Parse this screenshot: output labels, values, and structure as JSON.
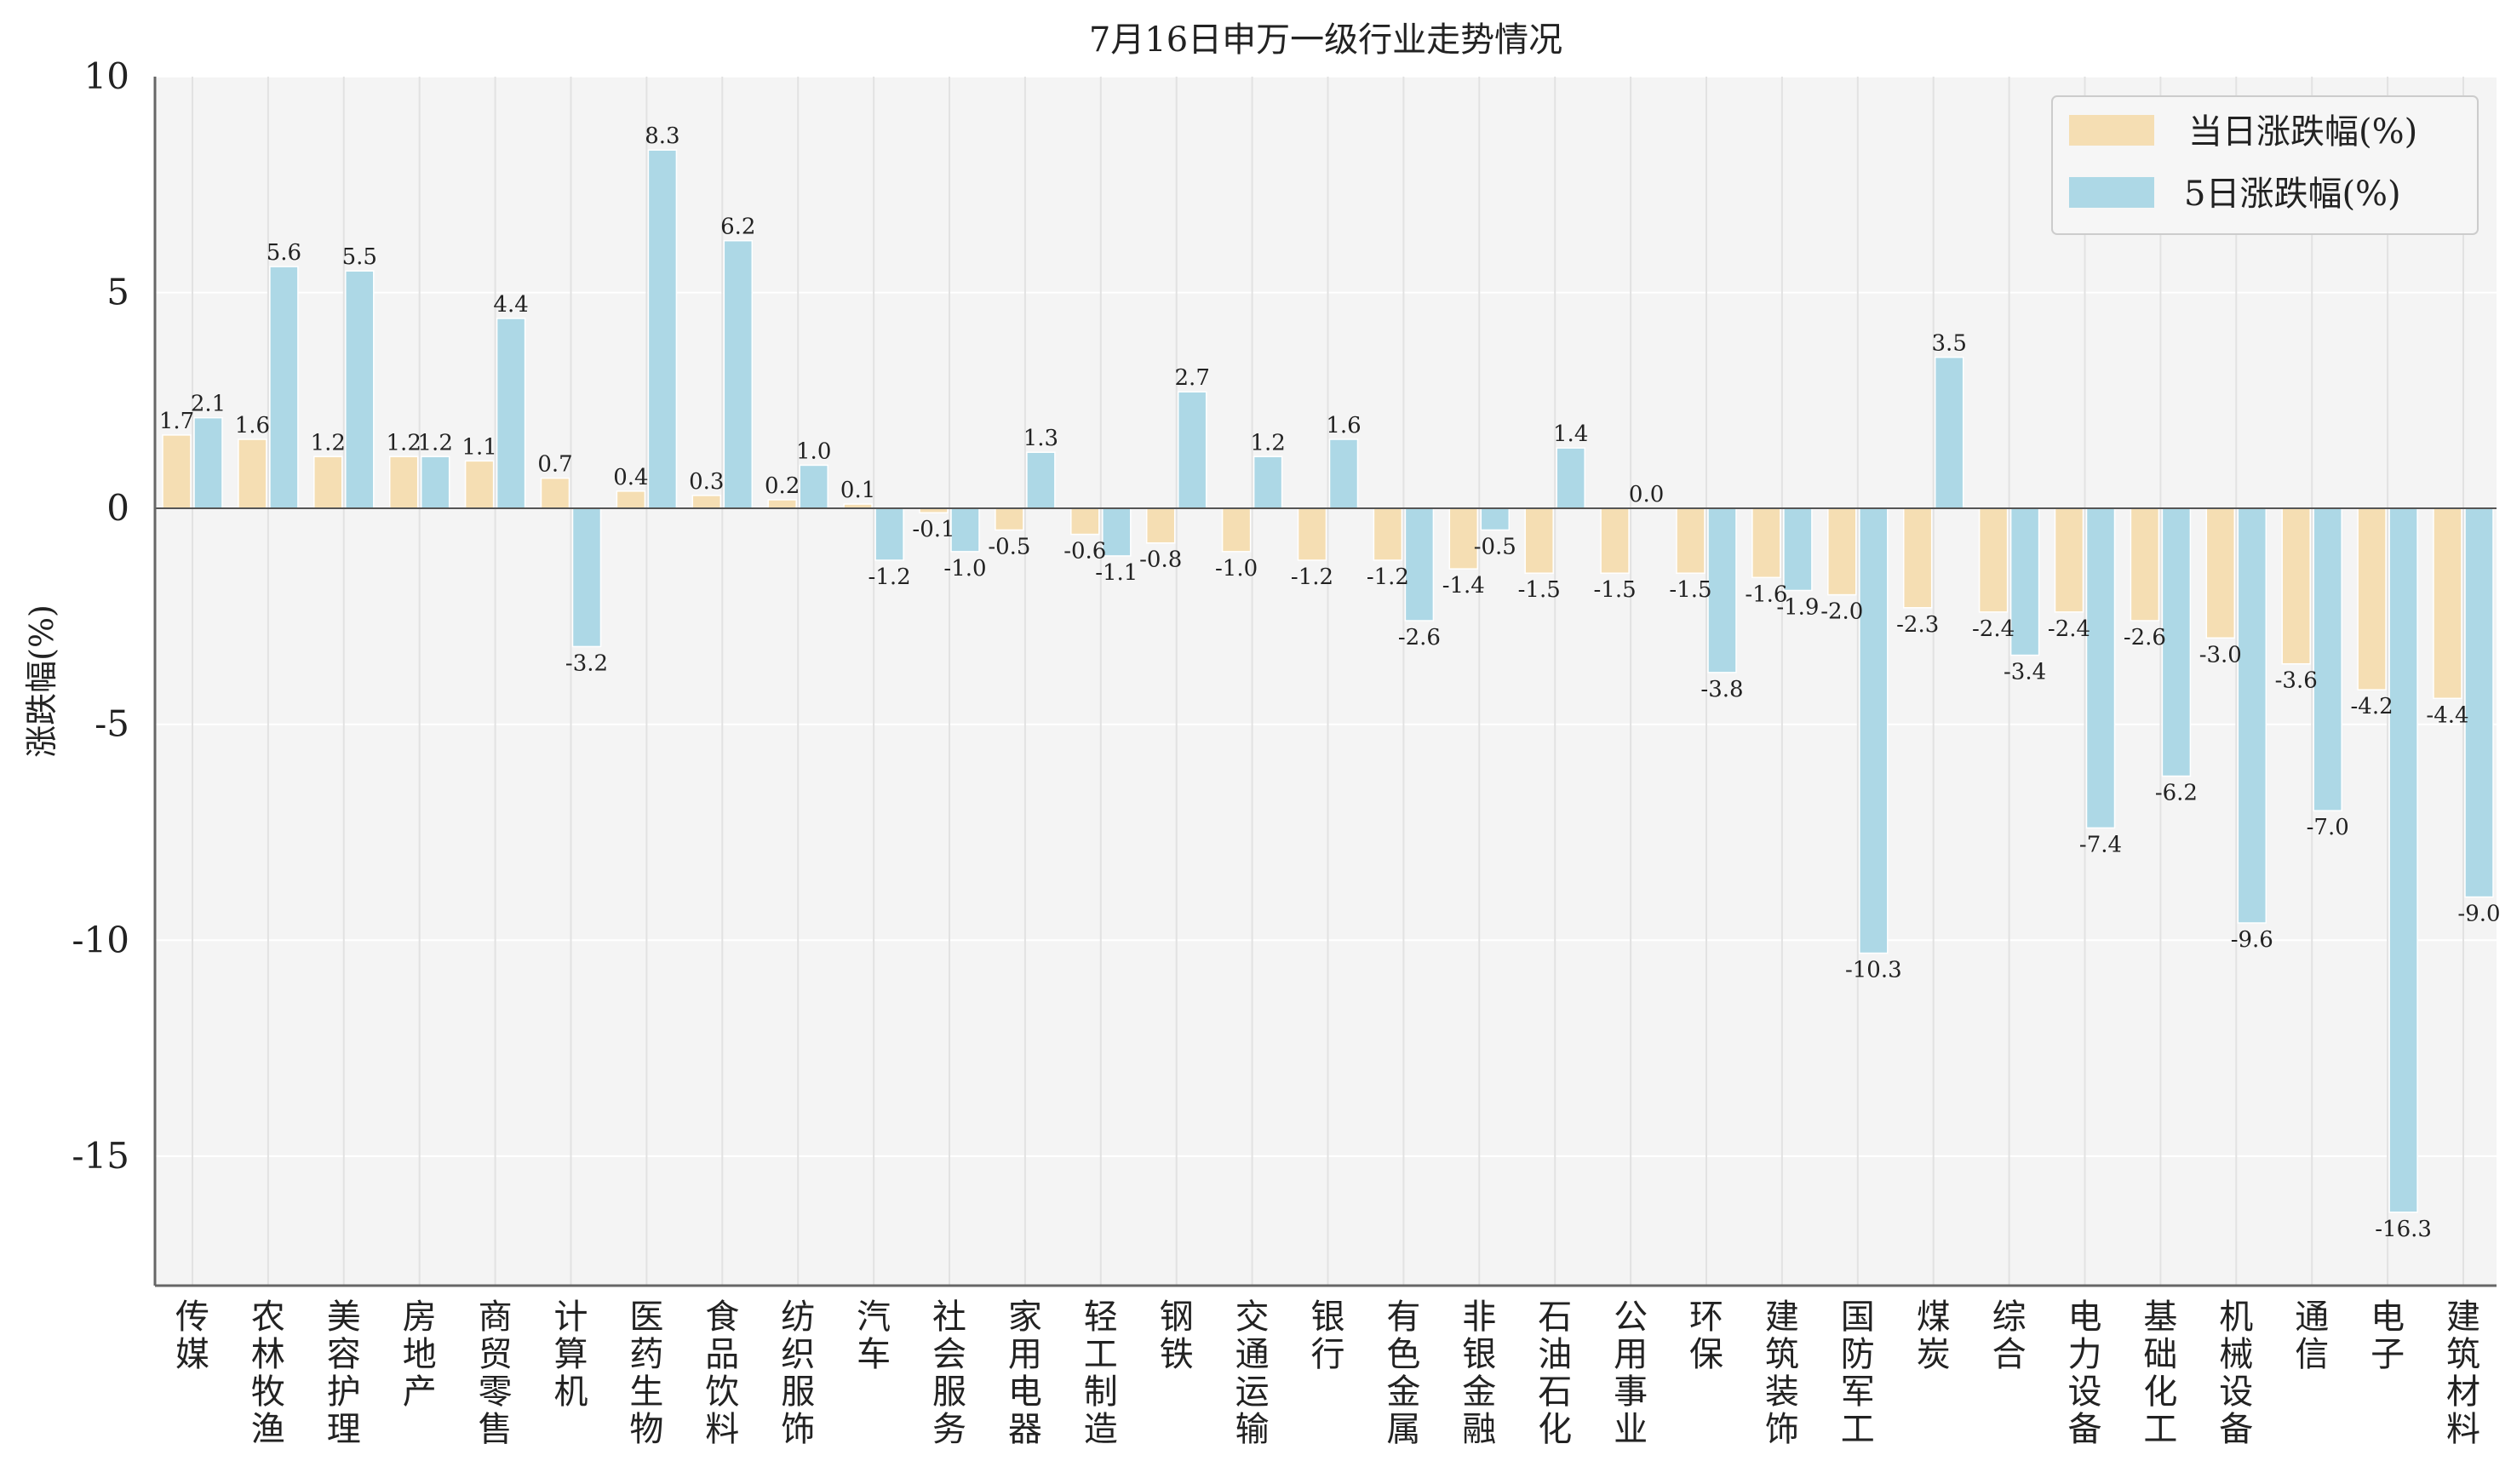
{
  "chart_data": {
    "type": "bar",
    "title": "7月16日申万一级行业走势情况",
    "xlabel": "",
    "ylabel": "涨跌幅(%)",
    "ylim": [
      -18,
      10
    ],
    "yticks": [
      10,
      5,
      0,
      -5,
      -10,
      -15
    ],
    "ytick_labels": [
      "10",
      "5",
      "0",
      "-5",
      "-10",
      "-15"
    ],
    "grid": true,
    "legend_position": "top-right",
    "categories": [
      "传媒",
      "农林牧渔",
      "美容护理",
      "房地产",
      "商贸零售",
      "计算机",
      "医药生物",
      "食品饮料",
      "纺织服饰",
      "汽车",
      "社会服务",
      "家用电器",
      "轻工制造",
      "钢铁",
      "交通运输",
      "银行",
      "有色金属",
      "非银金融",
      "石油石化",
      "公用事业",
      "环保",
      "建筑装饰",
      "国防军工",
      "煤炭",
      "综合",
      "电力设备",
      "基础化工",
      "机械设备",
      "通信",
      "电子",
      "建筑材料"
    ],
    "series": [
      {
        "name": "当日涨跌幅(%)",
        "color": "#f5deb3",
        "values": [
          1.7,
          1.6,
          1.2,
          1.2,
          1.1,
          0.7,
          0.4,
          0.3,
          0.2,
          0.1,
          -0.1,
          -0.5,
          -0.6,
          -0.8,
          -1.0,
          -1.2,
          -1.2,
          -1.4,
          -1.5,
          -1.5,
          -1.5,
          -1.6,
          -2.0,
          -2.3,
          -2.4,
          -2.4,
          -2.6,
          -3.0,
          -3.6,
          -4.2,
          -4.4
        ],
        "labels": [
          "1.7",
          "1.6",
          "1.2",
          "1.2",
          "1.1",
          "0.7",
          "0.4",
          "0.3",
          "0.2",
          "0.1",
          "-0.1",
          "-0.5",
          "-0.6",
          "-0.8",
          "-1.0",
          "-1.2",
          "-1.2",
          "-1.4",
          "-1.5",
          "-1.5",
          "-1.5",
          "-1.6",
          "-2.0",
          "-2.3",
          "-2.4",
          "-2.4",
          "-2.6",
          "-3.0",
          "-3.6",
          "-4.2",
          "-4.4"
        ]
      },
      {
        "name": "5日涨跌幅(%)",
        "color": "#add8e6",
        "values": [
          2.1,
          5.6,
          5.5,
          1.2,
          4.4,
          -3.2,
          8.3,
          6.2,
          1.0,
          -1.2,
          -1.0,
          1.3,
          -1.1,
          2.7,
          1.2,
          1.6,
          -2.6,
          -0.5,
          1.4,
          0.0,
          -3.8,
          -1.9,
          -10.3,
          3.5,
          -3.4,
          -7.4,
          -6.2,
          -9.6,
          -7.0,
          -16.3,
          -9.0
        ],
        "labels": [
          "2.1",
          "5.6",
          "5.5",
          "1.2",
          "4.4",
          "-3.2",
          "8.3",
          "6.2",
          "1.0",
          "-1.2",
          "-1.0",
          "1.3",
          "-1.1",
          "2.7",
          "1.2",
          "1.6",
          "-2.6",
          "-0.5",
          "1.4",
          "0.0",
          "-3.8",
          "-1.9",
          "-10.3",
          "3.5",
          "-3.4",
          "-7.4",
          "-6.2",
          "-9.6",
          "-7.0",
          "-16.3",
          "-9.0"
        ]
      }
    ]
  }
}
